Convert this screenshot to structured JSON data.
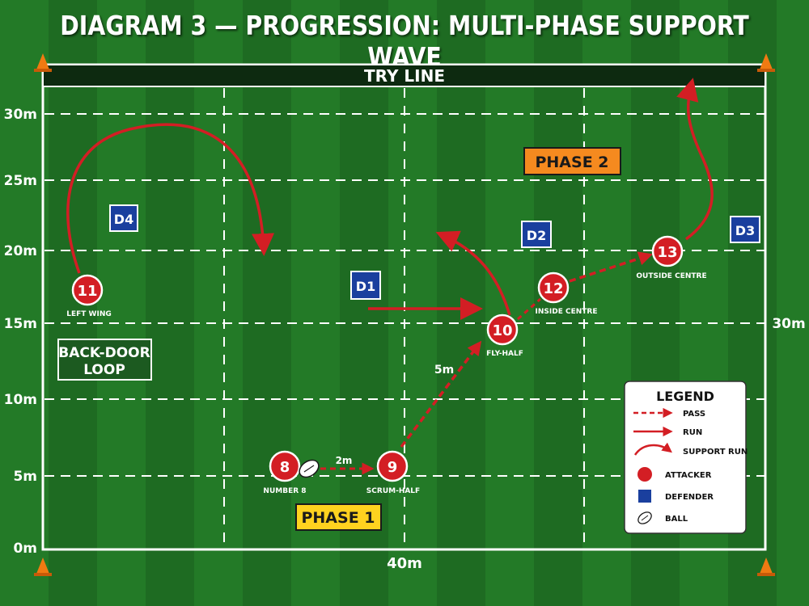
{
  "title": "DIAGRAM 3 — PROGRESSION: MULTI-PHASE SUPPORT WAVE",
  "try_line_label": "TRY LINE",
  "y_axis_labels": [
    "30m",
    "25m",
    "20m",
    "15m",
    "10m",
    "5m",
    "0m"
  ],
  "right_label": "30m",
  "bottom_label": "40m",
  "phase_labels": {
    "phase1": "PHASE 1",
    "phase2": "PHASE 2"
  },
  "back_door_label": [
    "BACK-DOOR",
    "LOOP"
  ],
  "distance_labels": {
    "pass_8_9": "2m",
    "pass_9_10": "5m"
  },
  "attackers": [
    {
      "number": "8",
      "role": "NUMBER 8"
    },
    {
      "number": "9",
      "role": "SCRUM-HALF"
    },
    {
      "number": "10",
      "role": "FLY-HALF"
    },
    {
      "number": "11",
      "role": "LEFT WING"
    },
    {
      "number": "12",
      "role": "INSIDE CENTRE"
    },
    {
      "number": "13",
      "role": "OUTSIDE CENTRE"
    }
  ],
  "defenders": [
    "D1",
    "D2",
    "D3",
    "D4"
  ],
  "legend": {
    "title": "LEGEND",
    "items": [
      "PASS",
      "RUN",
      "SUPPORT RUN",
      "ATTACKER",
      "DEFENDER",
      "BALL"
    ]
  },
  "colors": {
    "attacker": "#d31e24",
    "defender": "#1a3f9e",
    "arrow": "#d31e24",
    "phase1_box": "#ffd21f",
    "phase2_box": "#f58a1f",
    "try_line_bar": "#0d2a10"
  },
  "icons": [
    "cone-icon",
    "ball-icon"
  ]
}
